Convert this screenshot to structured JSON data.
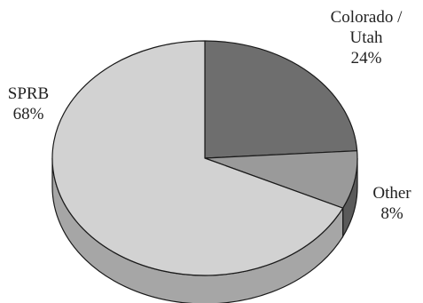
{
  "chart_data": {
    "type": "pie",
    "title": "",
    "style": "3d",
    "slices": [
      {
        "label_lines": [
          "Colorado /",
          "Utah"
        ],
        "value_text": "24%",
        "value": 24,
        "color": "#6e6e6e"
      },
      {
        "label_lines": [
          "Other"
        ],
        "value_text": "8%",
        "value": 8,
        "color": "#9a9a9a"
      },
      {
        "label_lines": [
          "SPRB"
        ],
        "value_text": "68%",
        "value": 68,
        "color": "#d2d2d2"
      }
    ],
    "colors": {
      "outline": "#1a1a1a",
      "side_colorado_utah": "#404040",
      "side_other": "#5a5a5a",
      "side_sprb": "#a6a6a6"
    }
  }
}
